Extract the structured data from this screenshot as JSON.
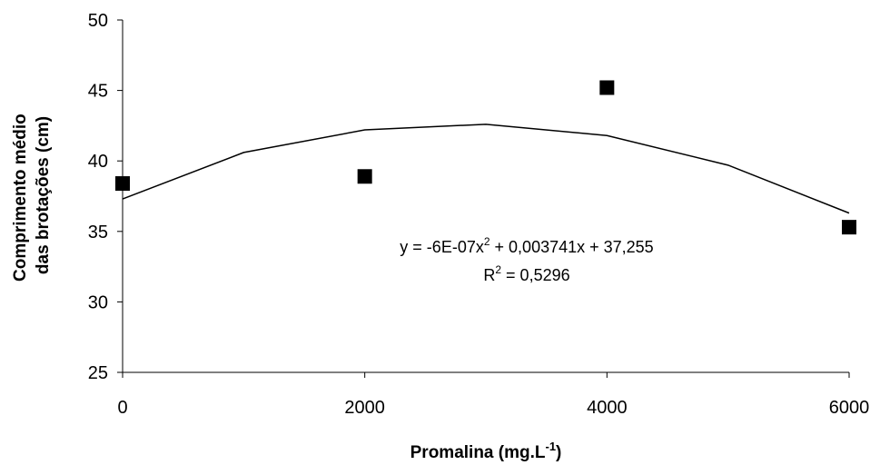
{
  "chart_data": {
    "type": "scatter",
    "x_label": [
      "Promalina (mg.L",
      "-1",
      ")"
    ],
    "y_label": [
      "Comprimento médio",
      "das brotações (cm)"
    ],
    "points": {
      "x": [
        0,
        2000,
        4000,
        6000
      ],
      "values": [
        38.4,
        38.9,
        45.2,
        35.3
      ],
      "color": "#000000"
    },
    "trendline": {
      "x": [
        0,
        1000,
        2000,
        3000,
        4000,
        5000,
        6000
      ],
      "values": [
        37.3,
        40.6,
        42.2,
        42.6,
        41.8,
        39.7,
        36.3
      ],
      "color": "#000000"
    },
    "equation": [
      "y = -6E-07x",
      "2",
      " + 0,003741x + 37,255"
    ],
    "r_squared": [
      "R",
      "2",
      " = 0,5296"
    ],
    "xlim": [
      0,
      6000
    ],
    "xticks": [
      0,
      2000,
      4000,
      6000
    ],
    "ylim": [
      25,
      50
    ],
    "yticks": [
      25,
      30,
      35,
      40,
      45,
      50
    ]
  }
}
